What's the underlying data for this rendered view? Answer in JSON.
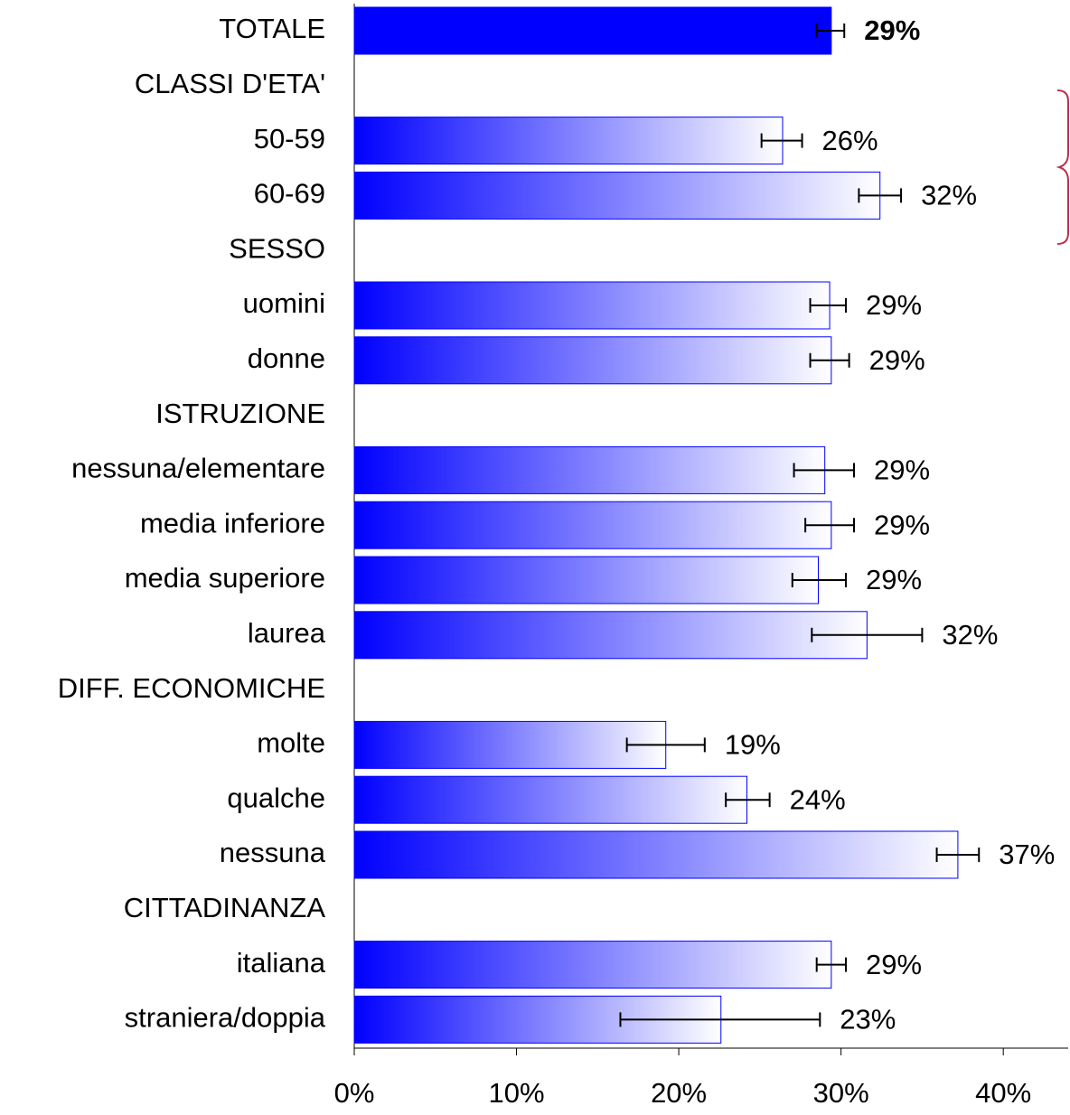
{
  "chart_data": {
    "type": "hbar",
    "categories": [
      "TOTALE",
      "CLASSI D'ETA'",
      "50-59",
      "60-69",
      "SESSO",
      "uomini",
      "donne",
      "ISTRUZIONE",
      "nessuna/elementare",
      "media inferiore",
      "media superiore",
      "laurea",
      "DIFF. ECONOMICHE",
      "molte",
      "qualche",
      "nessuna",
      "CITTADINANZA",
      "italiana",
      "straniera/doppia"
    ],
    "values": [
      29.4,
      null,
      26.4,
      32.4,
      null,
      29.3,
      29.4,
      null,
      29.0,
      29.4,
      28.6,
      31.6,
      null,
      19.2,
      24.2,
      37.2,
      null,
      29.4,
      22.6
    ],
    "value_labels": [
      "29%",
      null,
      "26%",
      "32%",
      null,
      "29%",
      "29%",
      null,
      "29%",
      "29%",
      "29%",
      "32%",
      null,
      "19%",
      "24%",
      "37%",
      null,
      "29%",
      "23%"
    ],
    "ci_low": [
      28.5,
      null,
      25.1,
      31.1,
      null,
      28.1,
      28.1,
      null,
      27.1,
      27.8,
      27.0,
      28.2,
      null,
      16.8,
      22.9,
      35.9,
      null,
      28.5,
      16.4
    ],
    "ci_high": [
      30.2,
      null,
      27.6,
      33.7,
      null,
      30.3,
      30.5,
      null,
      30.8,
      30.8,
      30.3,
      35.0,
      null,
      21.6,
      25.6,
      38.5,
      null,
      30.3,
      28.7
    ],
    "color": "#0000ff",
    "highlight_index": 0,
    "xlim": [
      0,
      44
    ],
    "xticks": [
      {
        "value": 0,
        "label": "0%"
      },
      {
        "value": 10,
        "label": "10%"
      },
      {
        "value": 20,
        "label": "20%"
      },
      {
        "value": 30,
        "label": "30%"
      },
      {
        "value": 40,
        "label": "40%"
      }
    ]
  }
}
